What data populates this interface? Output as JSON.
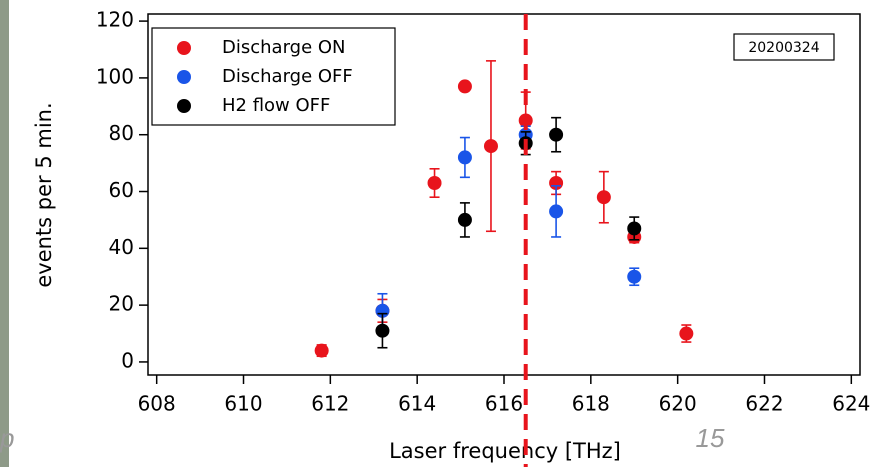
{
  "chart_data": {
    "type": "scatter",
    "xlabel": "Laser frequency [THz]",
    "ylabel": "events per 5 min.",
    "annotation": "20200324",
    "xlim": [
      607.8,
      624.2
    ],
    "xticks": [
      608,
      610,
      612,
      614,
      616,
      618,
      620,
      622,
      624
    ],
    "ylim": [
      -4.6,
      122.5
    ],
    "yticks": [
      0,
      20,
      40,
      60,
      80,
      100,
      120
    ],
    "legend": "upper left",
    "vline": {
      "x": 616.5,
      "color": "#e8141c"
    },
    "series": [
      {
        "name": "Discharge ON",
        "color": "#e8141c",
        "x": [
          611.8,
          613.2,
          614.4,
          615.1,
          615.7,
          616.5,
          617.2,
          618.3,
          619.0,
          620.2
        ],
        "values": [
          4,
          18,
          63,
          97,
          76,
          85,
          63,
          58,
          44,
          10
        ],
        "errors": [
          2,
          4,
          5,
          0,
          30,
          10,
          4,
          9,
          2,
          3
        ]
      },
      {
        "name": "Discharge OFF",
        "color": "#1a55e8",
        "x": [
          613.2,
          615.1,
          616.5,
          617.2,
          619.0
        ],
        "values": [
          18,
          72,
          80,
          53,
          30
        ],
        "errors": [
          6,
          7,
          3,
          9,
          3
        ]
      },
      {
        "name": "H2 flow OFF",
        "color": "#000000",
        "x": [
          613.2,
          615.1,
          616.5,
          617.2,
          619.0
        ],
        "values": [
          11,
          50,
          77,
          80,
          47
        ],
        "errors": [
          6,
          6,
          4,
          6,
          4
        ]
      }
    ]
  },
  "slide_text": {
    "left": "p",
    "page_number": "15"
  }
}
